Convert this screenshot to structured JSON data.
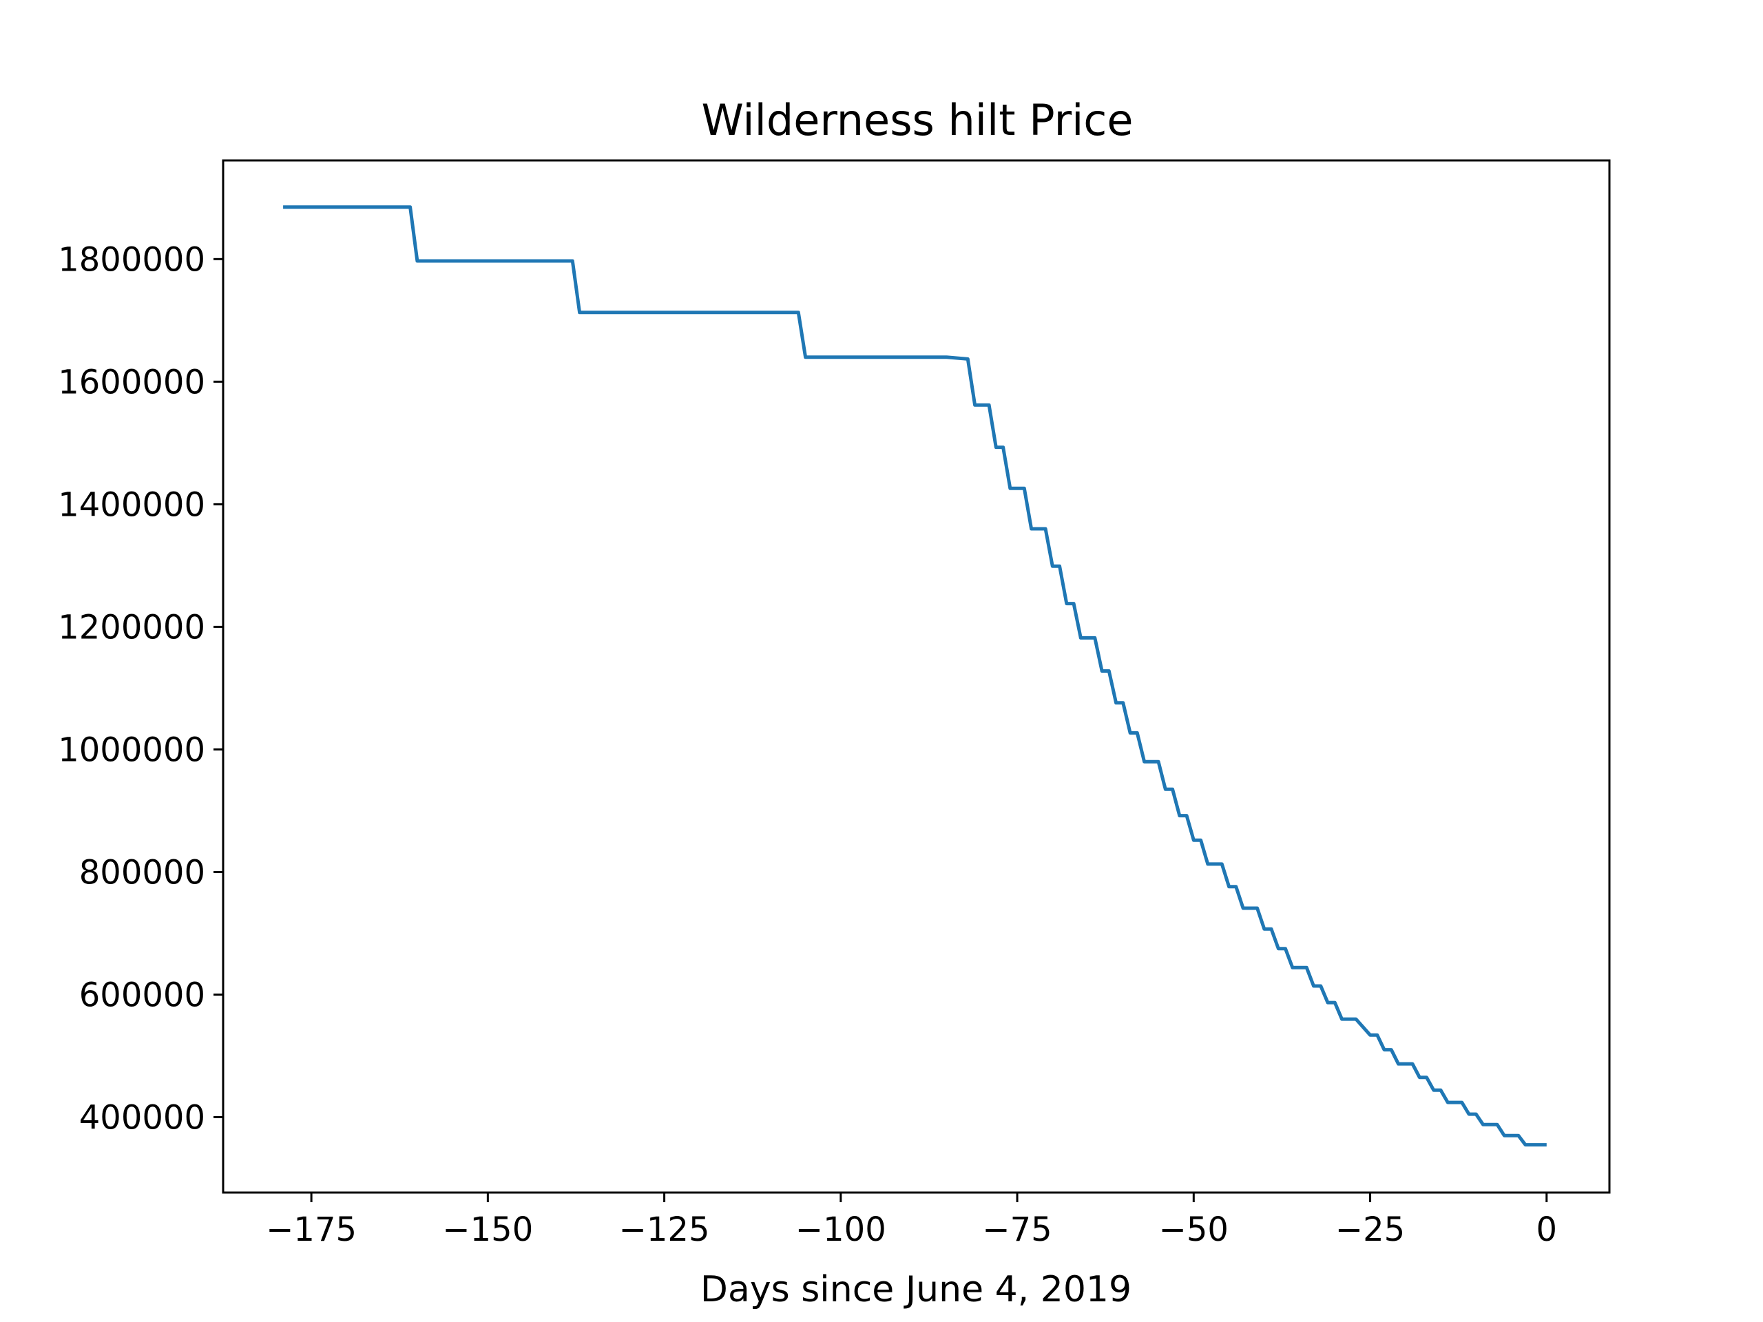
{
  "chart_data": {
    "type": "line",
    "title": "Wilderness hilt Price",
    "xlabel": "Days since June 4, 2019",
    "ylabel": "",
    "xlim": [
      -187.5,
      8.9
    ],
    "ylim": [
      277000,
      1961000
    ],
    "grid": false,
    "legend": "none",
    "line_color": "#1f77b4",
    "x_ticks": [
      -175,
      -150,
      -125,
      -100,
      -75,
      -50,
      -25,
      0
    ],
    "x_tick_labels": [
      "−175",
      "−150",
      "−125",
      "−100",
      "−75",
      "−50",
      "−25",
      "0"
    ],
    "y_ticks": [
      400000,
      600000,
      800000,
      1000000,
      1200000,
      1400000,
      1600000,
      1800000
    ],
    "y_tick_labels": [
      "400000",
      "600000",
      "800000",
      "1000000",
      "1200000",
      "1400000",
      "1600000",
      "1800000"
    ],
    "series": [
      {
        "x": [
          -179,
          -161,
          -160,
          -138,
          -137,
          -106,
          -105,
          -85,
          -82,
          -81,
          -79,
          -78,
          -77,
          -76,
          -74,
          -73,
          -71,
          -70,
          -69,
          -68,
          -67,
          -66,
          -64,
          -63,
          -62,
          -61,
          -60,
          -59,
          -58,
          -57,
          -55,
          -54,
          -53,
          -52,
          -51,
          -50,
          -49,
          -48,
          -46,
          -45,
          -44,
          -43,
          -41,
          -40,
          -39,
          -38,
          -37,
          -36,
          -34,
          -33,
          -32,
          -31,
          -30,
          -29,
          -28,
          -27,
          -25,
          -24,
          -23,
          -22,
          -21,
          -20,
          -19,
          -18,
          -17,
          -16,
          -15,
          -14,
          -13,
          -12,
          -11,
          -10,
          -9,
          -8,
          -7,
          -6,
          -5,
          -4,
          -3,
          -2,
          -1,
          0
        ],
        "y": [
          1885000,
          1885000,
          1797000,
          1797000,
          1713000,
          1713000,
          1640000,
          1640000,
          1637000,
          1562000,
          1562000,
          1493000,
          1493000,
          1426000,
          1426000,
          1360000,
          1360000,
          1299000,
          1299000,
          1238000,
          1238000,
          1182000,
          1182000,
          1128000,
          1128000,
          1076000,
          1076000,
          1027000,
          1027000,
          980000,
          980000,
          935000,
          935000,
          892000,
          892000,
          852000,
          852000,
          813000,
          813000,
          776000,
          776000,
          741000,
          741000,
          707000,
          707000,
          675000,
          675000,
          644000,
          644000,
          614000,
          614000,
          587000,
          587000,
          560000,
          560000,
          560000,
          534000,
          534000,
          510000,
          510000,
          487000,
          487000,
          487000,
          465000,
          465000,
          444000,
          444000,
          424000,
          424000,
          424000,
          405000,
          405000,
          388000,
          388000,
          388000,
          370000,
          370000,
          370000,
          355000,
          355000,
          355000,
          355000
        ]
      }
    ]
  }
}
